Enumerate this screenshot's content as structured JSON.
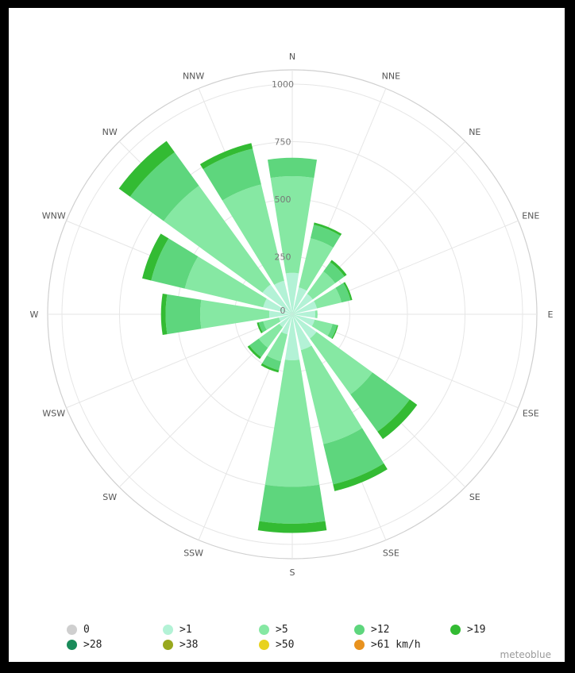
{
  "chart_data": {
    "type": "wind-rose",
    "directions": [
      "N",
      "NNE",
      "NE",
      "ENE",
      "E",
      "ESE",
      "SE",
      "SSE",
      "S",
      "SSW",
      "SW",
      "WSW",
      "W",
      "WNW",
      "NW",
      "NNW"
    ],
    "radial_ticks": [
      "0",
      "250",
      "500",
      "750",
      "1000"
    ],
    "rmax": 1000,
    "series": [
      {
        "name": "0",
        "color": "#cfcfcf",
        "values": [
          0,
          0,
          0,
          0,
          0,
          0,
          0,
          0,
          0,
          0,
          0,
          0,
          0,
          0,
          0,
          0
        ]
      },
      {
        "name": ">1",
        "color": "#b3f2d6",
        "values": [
          180,
          120,
          110,
          110,
          100,
          100,
          130,
          160,
          200,
          90,
          70,
          60,
          100,
          130,
          160,
          150
        ]
      },
      {
        "name": ">5",
        "color": "#86e8a3",
        "values": [
          420,
          220,
          120,
          110,
          10,
          80,
          300,
          420,
          550,
          120,
          110,
          70,
          300,
          350,
          530,
          430
        ]
      },
      {
        "name": ">12",
        "color": "#5ed67d",
        "values": [
          80,
          60,
          50,
          40,
          0,
          20,
          200,
          180,
          160,
          40,
          50,
          20,
          150,
          150,
          180,
          160
        ]
      },
      {
        "name": ">19",
        "color": "#33bb33",
        "values": [
          0,
          10,
          12,
          8,
          0,
          5,
          40,
          30,
          40,
          10,
          10,
          8,
          20,
          40,
          60,
          25
        ]
      },
      {
        "name": ">28",
        "color": "#1a8b5a",
        "values": [
          0,
          0,
          0,
          0,
          0,
          0,
          0,
          0,
          0,
          0,
          0,
          0,
          0,
          0,
          0,
          0
        ]
      },
      {
        "name": ">38",
        "color": "#98a81e",
        "values": [
          0,
          0,
          0,
          0,
          0,
          0,
          0,
          0,
          0,
          0,
          0,
          0,
          0,
          0,
          0,
          0
        ]
      },
      {
        "name": ">50",
        "color": "#e8d21e",
        "values": [
          0,
          0,
          0,
          0,
          0,
          0,
          0,
          0,
          0,
          0,
          0,
          0,
          0,
          0,
          0,
          0
        ]
      },
      {
        "name": ">61 km/h",
        "color": "#e8921e",
        "values": [
          0,
          0,
          0,
          0,
          0,
          0,
          0,
          0,
          0,
          0,
          0,
          0,
          0,
          0,
          0,
          0
        ]
      }
    ]
  },
  "brand": "meteoblue"
}
